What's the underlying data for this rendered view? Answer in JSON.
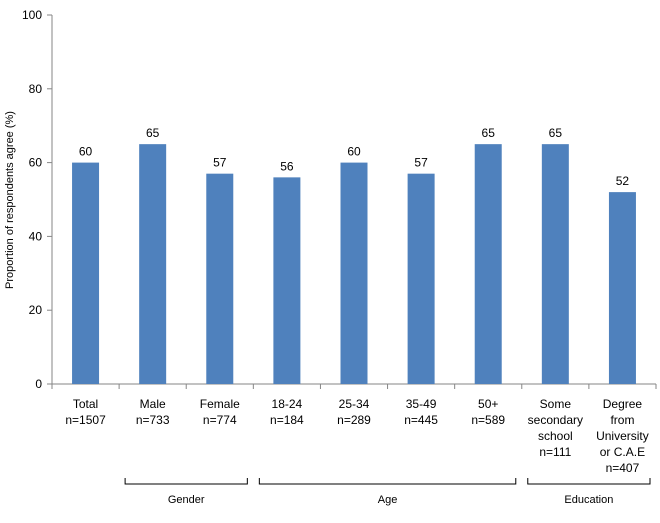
{
  "chart_data": {
    "type": "bar",
    "title": "",
    "xlabel": "",
    "ylabel": "Proportion of respondents agree (%)",
    "ylim": [
      0,
      100
    ],
    "yticks": [
      0,
      20,
      40,
      60,
      80,
      100
    ],
    "grid": false,
    "legend": "none",
    "bar_color": "#4F81BD",
    "categories": [
      [
        "Total",
        "n=1507"
      ],
      [
        "Male",
        "n=733"
      ],
      [
        "Female",
        "n=774"
      ],
      [
        "18-24",
        "n=184"
      ],
      [
        "25-34",
        "n=289"
      ],
      [
        "35-49",
        "n=445"
      ],
      [
        "50+",
        "n=589"
      ],
      [
        "Some",
        "secondary",
        "school",
        "n=111"
      ],
      [
        "Degree",
        "from",
        "University",
        "or C.A.E",
        "n=407"
      ]
    ],
    "values": [
      60,
      65,
      57,
      56,
      60,
      57,
      65,
      65,
      52
    ],
    "groups": [
      {
        "label": "Gender",
        "from": 1,
        "to": 2
      },
      {
        "label": "Age",
        "from": 3,
        "to": 6
      },
      {
        "label": "Education",
        "from": 7,
        "to": 8
      }
    ]
  }
}
